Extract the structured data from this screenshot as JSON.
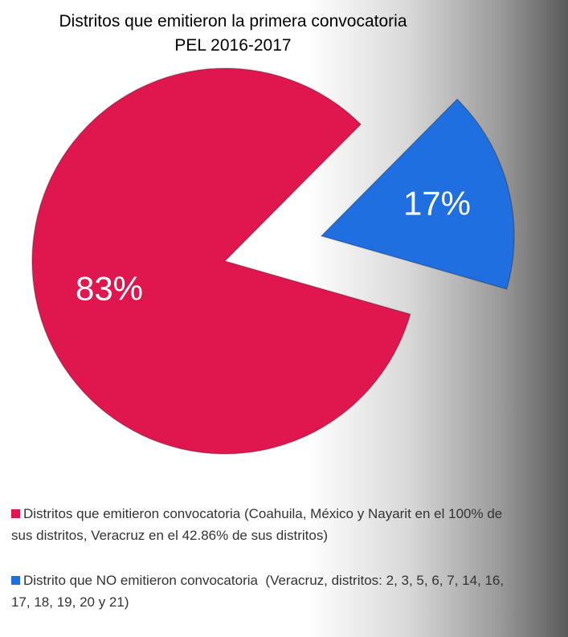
{
  "chart_data": {
    "type": "pie",
    "title": "Distritos que emitieron la primera convocatoria",
    "subtitle": "PEL 2016-2017",
    "categories": [
      "Distritos que emitieron convocatoria (Coahuila, México y Nayarit en el 100% de sus distritos, Veracruz en el 42.86% de sus distritos)",
      "Distrito que NO emitieron convocatoria  (Veracruz, distritos: 2, 3, 5, 6, 7, 14, 16, 17, 18, 19, 20 y 21)"
    ],
    "values": [
      83,
      17
    ],
    "value_labels": [
      "83%",
      "17%"
    ],
    "colors": [
      "#e0174f",
      "#1f6fe0"
    ],
    "exploded": [
      false,
      true
    ]
  }
}
